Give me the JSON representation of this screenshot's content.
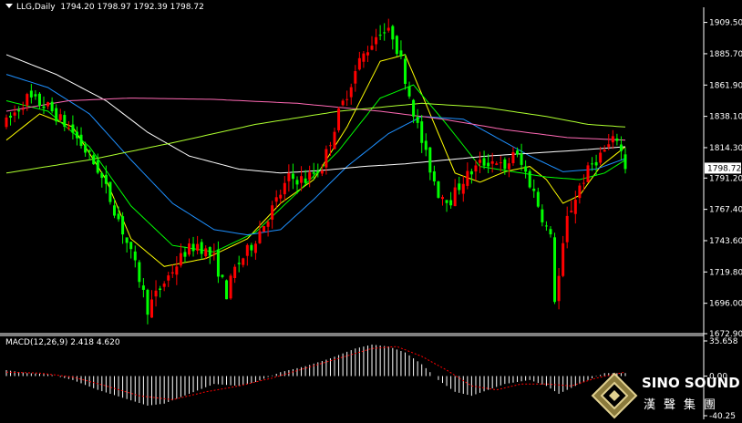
{
  "header": {
    "symbol": "LLG,Daily",
    "ohlc": "1794.20 1798.97 1792.39 1798.72"
  },
  "macd_header": {
    "label": "MACD(12,26,9) 2.418 4.620"
  },
  "logo": {
    "english": "SINO SOUND",
    "chinese": "漢聲集團"
  },
  "colors": {
    "background": "#000000",
    "axis": "#ffffff",
    "bull_candle": "#ff0000",
    "bear_candle": "#00ff00",
    "current_price_box": "#ffffff",
    "ma_colors": [
      "#ffff00",
      "#00ff00",
      "#1e90ff",
      "#ffffff",
      "#ff69b4",
      "#adff2f"
    ],
    "macd_hist": "#ffffff",
    "macd_signal": "#ff0000"
  },
  "chart_data": [
    {
      "type": "candlestick",
      "title": "LLG,Daily",
      "y_ticks": [
        "1909.50",
        "1885.70",
        "1861.90",
        "1838.10",
        "1814.30",
        "1791.20",
        "1767.40",
        "1743.60",
        "1719.80",
        "1696.00",
        "1672.90"
      ],
      "current_price": "1798.72",
      "ylim": [
        1672.9,
        1921.0
      ],
      "candle_count": 135,
      "close_path": [
        [
          0,
          1833
        ],
        [
          5,
          1852
        ],
        [
          10,
          1845
        ],
        [
          16,
          1826
        ],
        [
          22,
          1798
        ],
        [
          27,
          1760
        ],
        [
          32,
          1715
        ],
        [
          34,
          1692
        ],
        [
          38,
          1712
        ],
        [
          43,
          1735
        ],
        [
          46,
          1741
        ],
        [
          50,
          1730
        ],
        [
          53,
          1703
        ],
        [
          55,
          1722
        ],
        [
          59,
          1740
        ],
        [
          63,
          1762
        ],
        [
          68,
          1791
        ],
        [
          72,
          1790
        ],
        [
          76,
          1800
        ],
        [
          80,
          1840
        ],
        [
          85,
          1880
        ],
        [
          90,
          1904
        ],
        [
          93,
          1900
        ],
        [
          95,
          1880
        ],
        [
          97,
          1855
        ],
        [
          99,
          1830
        ],
        [
          101,
          1808
        ],
        [
          104,
          1780
        ],
        [
          107,
          1775
        ],
        [
          110,
          1790
        ],
        [
          114,
          1802
        ],
        [
          118,
          1805
        ],
        [
          120,
          1795
        ],
        [
          122,
          1812
        ],
        [
          125,
          1795
        ],
        [
          127,
          1780
        ],
        [
          129,
          1762
        ],
        [
          131,
          1745
        ],
        [
          132,
          1700
        ],
        [
          133,
          1716
        ],
        [
          135,
          1760
        ],
        [
          138,
          1785
        ],
        [
          141,
          1802
        ],
        [
          144,
          1812
        ],
        [
          147,
          1822
        ],
        [
          149,
          1800
        ]
      ],
      "moving_averages": [
        {
          "color": "#ffff00",
          "path": [
            [
              0,
              1820
            ],
            [
              8,
              1840
            ],
            [
              16,
              1830
            ],
            [
              24,
              1790
            ],
            [
              30,
              1745
            ],
            [
              38,
              1724
            ],
            [
              48,
              1730
            ],
            [
              58,
              1745
            ],
            [
              66,
              1772
            ],
            [
              74,
              1790
            ],
            [
              82,
              1830
            ],
            [
              90,
              1880
            ],
            [
              96,
              1885
            ],
            [
              102,
              1840
            ],
            [
              108,
              1795
            ],
            [
              114,
              1788
            ],
            [
              120,
              1796
            ],
            [
              126,
              1800
            ],
            [
              130,
              1790
            ],
            [
              134,
              1772
            ],
            [
              138,
              1778
            ],
            [
              143,
              1800
            ],
            [
              149,
              1815
            ]
          ]
        },
        {
          "color": "#00ff00",
          "path": [
            [
              0,
              1850
            ],
            [
              10,
              1842
            ],
            [
              20,
              1815
            ],
            [
              30,
              1770
            ],
            [
              40,
              1740
            ],
            [
              50,
              1735
            ],
            [
              60,
              1750
            ],
            [
              70,
              1780
            ],
            [
              80,
              1812
            ],
            [
              90,
              1852
            ],
            [
              98,
              1862
            ],
            [
              106,
              1832
            ],
            [
              114,
              1800
            ],
            [
              122,
              1796
            ],
            [
              130,
              1792
            ],
            [
              138,
              1790
            ],
            [
              144,
              1795
            ],
            [
              149,
              1805
            ]
          ]
        },
        {
          "color": "#1e90ff",
          "path": [
            [
              0,
              1870
            ],
            [
              10,
              1860
            ],
            [
              20,
              1840
            ],
            [
              30,
              1805
            ],
            [
              40,
              1772
            ],
            [
              50,
              1752
            ],
            [
              58,
              1748
            ],
            [
              66,
              1752
            ],
            [
              74,
              1775
            ],
            [
              82,
              1800
            ],
            [
              92,
              1825
            ],
            [
              100,
              1838
            ],
            [
              110,
              1836
            ],
            [
              118,
              1822
            ],
            [
              126,
              1808
            ],
            [
              134,
              1796
            ],
            [
              142,
              1798
            ],
            [
              149,
              1806
            ]
          ]
        },
        {
          "color": "#ffffff",
          "path": [
            [
              0,
              1885
            ],
            [
              12,
              1870
            ],
            [
              24,
              1850
            ],
            [
              34,
              1826
            ],
            [
              44,
              1808
            ],
            [
              56,
              1798
            ],
            [
              66,
              1795
            ],
            [
              76,
              1797
            ],
            [
              86,
              1800
            ],
            [
              96,
              1802
            ],
            [
              106,
              1805
            ],
            [
              116,
              1808
            ],
            [
              126,
              1810
            ],
            [
              136,
              1812
            ],
            [
              149,
              1815
            ]
          ]
        },
        {
          "color": "#ff69b4",
          "path": [
            [
              0,
              1842
            ],
            [
              15,
              1850
            ],
            [
              30,
              1852
            ],
            [
              50,
              1851
            ],
            [
              70,
              1848
            ],
            [
              90,
              1842
            ],
            [
              105,
              1836
            ],
            [
              120,
              1828
            ],
            [
              135,
              1822
            ],
            [
              149,
              1820
            ]
          ]
        },
        {
          "color": "#adff2f",
          "path": [
            [
              0,
              1795
            ],
            [
              20,
              1805
            ],
            [
              40,
              1818
            ],
            [
              60,
              1832
            ],
            [
              80,
              1842
            ],
            [
              100,
              1848
            ],
            [
              115,
              1845
            ],
            [
              130,
              1838
            ],
            [
              140,
              1832
            ],
            [
              149,
              1830
            ]
          ]
        }
      ]
    },
    {
      "type": "bar",
      "title": "MACD(12,26,9)",
      "values_label": "2.418 4.620",
      "y_ticks": [
        "35.658",
        "0.00",
        "-40.25"
      ],
      "ylim": [
        -40.25,
        35.658
      ],
      "histogram_path": [
        [
          0,
          6
        ],
        [
          5,
          3
        ],
        [
          10,
          2
        ],
        [
          16,
          -4
        ],
        [
          22,
          -14
        ],
        [
          28,
          -22
        ],
        [
          34,
          -30
        ],
        [
          38,
          -28
        ],
        [
          44,
          -18
        ],
        [
          50,
          -8
        ],
        [
          56,
          -10
        ],
        [
          60,
          -6
        ],
        [
          66,
          4
        ],
        [
          72,
          10
        ],
        [
          78,
          18
        ],
        [
          84,
          28
        ],
        [
          88,
          32
        ],
        [
          92,
          30
        ],
        [
          96,
          24
        ],
        [
          100,
          12
        ],
        [
          104,
          -4
        ],
        [
          108,
          -16
        ],
        [
          112,
          -20
        ],
        [
          116,
          -14
        ],
        [
          120,
          -8
        ],
        [
          126,
          -4
        ],
        [
          130,
          -10
        ],
        [
          133,
          -18
        ],
        [
          136,
          -12
        ],
        [
          140,
          -4
        ],
        [
          144,
          3
        ],
        [
          149,
          3
        ]
      ],
      "signal_path": [
        [
          0,
          4
        ],
        [
          8,
          3
        ],
        [
          16,
          -1
        ],
        [
          24,
          -10
        ],
        [
          32,
          -20
        ],
        [
          40,
          -24
        ],
        [
          48,
          -16
        ],
        [
          56,
          -10
        ],
        [
          64,
          -2
        ],
        [
          72,
          8
        ],
        [
          80,
          18
        ],
        [
          88,
          28
        ],
        [
          94,
          30
        ],
        [
          100,
          20
        ],
        [
          106,
          6
        ],
        [
          112,
          -10
        ],
        [
          118,
          -14
        ],
        [
          124,
          -8
        ],
        [
          130,
          -8
        ],
        [
          136,
          -10
        ],
        [
          142,
          -2
        ],
        [
          149,
          4
        ]
      ]
    }
  ]
}
